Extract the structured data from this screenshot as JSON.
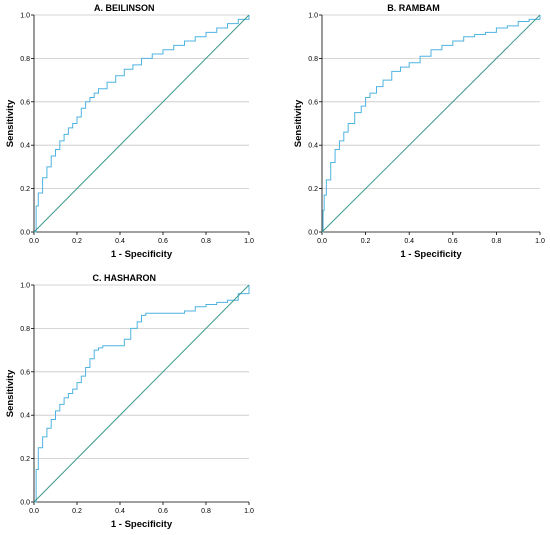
{
  "chart_data": [
    {
      "type": "line",
      "title": "A. BEILINSON",
      "xlabel": "1 - Specificity",
      "ylabel": "Sensitivity",
      "xlim": [
        0,
        1
      ],
      "ylim": [
        0,
        1
      ],
      "xticks": [
        "0.0",
        "0.2",
        "0.4",
        "0.6",
        "0.8",
        "1.0"
      ],
      "yticks": [
        "0.0",
        "0.2",
        "0.4",
        "0.6",
        "0.8",
        "1.0"
      ],
      "grid": "horizontal",
      "series": [
        {
          "x": [
            0,
            0.01,
            0.02,
            0.04,
            0.06,
            0.08,
            0.1,
            0.12,
            0.14,
            0.16,
            0.18,
            0.2,
            0.22,
            0.24,
            0.26,
            0.28,
            0.3,
            0.34,
            0.38,
            0.42,
            0.46,
            0.5,
            0.55,
            0.6,
            0.65,
            0.7,
            0.75,
            0.8,
            0.85,
            0.9,
            0.95,
            1.0
          ],
          "y": [
            0,
            0.12,
            0.18,
            0.25,
            0.3,
            0.35,
            0.38,
            0.42,
            0.45,
            0.48,
            0.5,
            0.53,
            0.57,
            0.6,
            0.62,
            0.64,
            0.66,
            0.69,
            0.72,
            0.75,
            0.77,
            0.8,
            0.82,
            0.84,
            0.86,
            0.88,
            0.9,
            0.92,
            0.94,
            0.96,
            0.98,
            1.0
          ]
        },
        {
          "x": [
            0,
            1
          ],
          "y": [
            0,
            1
          ]
        }
      ]
    },
    {
      "type": "line",
      "title": "B. RAMBAM",
      "xlabel": "1 - Specificity",
      "ylabel": "Sensitivity",
      "xlim": [
        0,
        1
      ],
      "ylim": [
        0,
        1
      ],
      "xticks": [
        "0.0",
        "0.2",
        "0.4",
        "0.6",
        "0.8",
        "1.0"
      ],
      "yticks": [
        "0.0",
        "0.2",
        "0.4",
        "0.6",
        "0.8",
        "1.0"
      ],
      "grid": "horizontal",
      "series": [
        {
          "x": [
            0,
            0.005,
            0.01,
            0.02,
            0.04,
            0.06,
            0.08,
            0.1,
            0.12,
            0.15,
            0.18,
            0.2,
            0.22,
            0.25,
            0.28,
            0.32,
            0.36,
            0.4,
            0.45,
            0.5,
            0.55,
            0.6,
            0.65,
            0.7,
            0.75,
            0.8,
            0.85,
            0.9,
            0.95,
            1.0
          ],
          "y": [
            0,
            0.1,
            0.17,
            0.24,
            0.32,
            0.38,
            0.42,
            0.46,
            0.5,
            0.55,
            0.58,
            0.62,
            0.64,
            0.67,
            0.7,
            0.74,
            0.76,
            0.78,
            0.81,
            0.84,
            0.86,
            0.88,
            0.9,
            0.91,
            0.92,
            0.94,
            0.95,
            0.97,
            0.98,
            1.0
          ]
        },
        {
          "x": [
            0,
            1
          ],
          "y": [
            0,
            1
          ]
        }
      ]
    },
    {
      "type": "line",
      "title": "C. HASHARON",
      "xlabel": "1 - Specificity",
      "ylabel": "Sensitivity",
      "xlim": [
        0,
        1
      ],
      "ylim": [
        0,
        1
      ],
      "xticks": [
        "0.0",
        "0.2",
        "0.4",
        "0.6",
        "0.8",
        "1.0"
      ],
      "yticks": [
        "0.0",
        "0.2",
        "0.4",
        "0.6",
        "0.8",
        "1.0"
      ],
      "grid": "horizontal",
      "series": [
        {
          "x": [
            0,
            0.01,
            0.02,
            0.04,
            0.06,
            0.08,
            0.1,
            0.12,
            0.14,
            0.16,
            0.18,
            0.2,
            0.22,
            0.24,
            0.26,
            0.28,
            0.3,
            0.32,
            0.35,
            0.38,
            0.42,
            0.45,
            0.48,
            0.5,
            0.52,
            0.55,
            0.6,
            0.65,
            0.7,
            0.75,
            0.8,
            0.85,
            0.9,
            0.95,
            1.0
          ],
          "y": [
            0,
            0.15,
            0.25,
            0.3,
            0.34,
            0.38,
            0.42,
            0.45,
            0.48,
            0.5,
            0.52,
            0.55,
            0.58,
            0.62,
            0.66,
            0.7,
            0.71,
            0.72,
            0.72,
            0.72,
            0.75,
            0.8,
            0.83,
            0.86,
            0.87,
            0.87,
            0.87,
            0.87,
            0.88,
            0.9,
            0.91,
            0.92,
            0.93,
            0.96,
            1.0
          ]
        },
        {
          "x": [
            0,
            1
          ],
          "y": [
            0,
            1
          ]
        }
      ]
    }
  ],
  "colors": {
    "roc_curve": "#4fb3e0",
    "reference_line": "#3d9a8c",
    "grid": "#c8c8c8",
    "axis": "#000000"
  }
}
